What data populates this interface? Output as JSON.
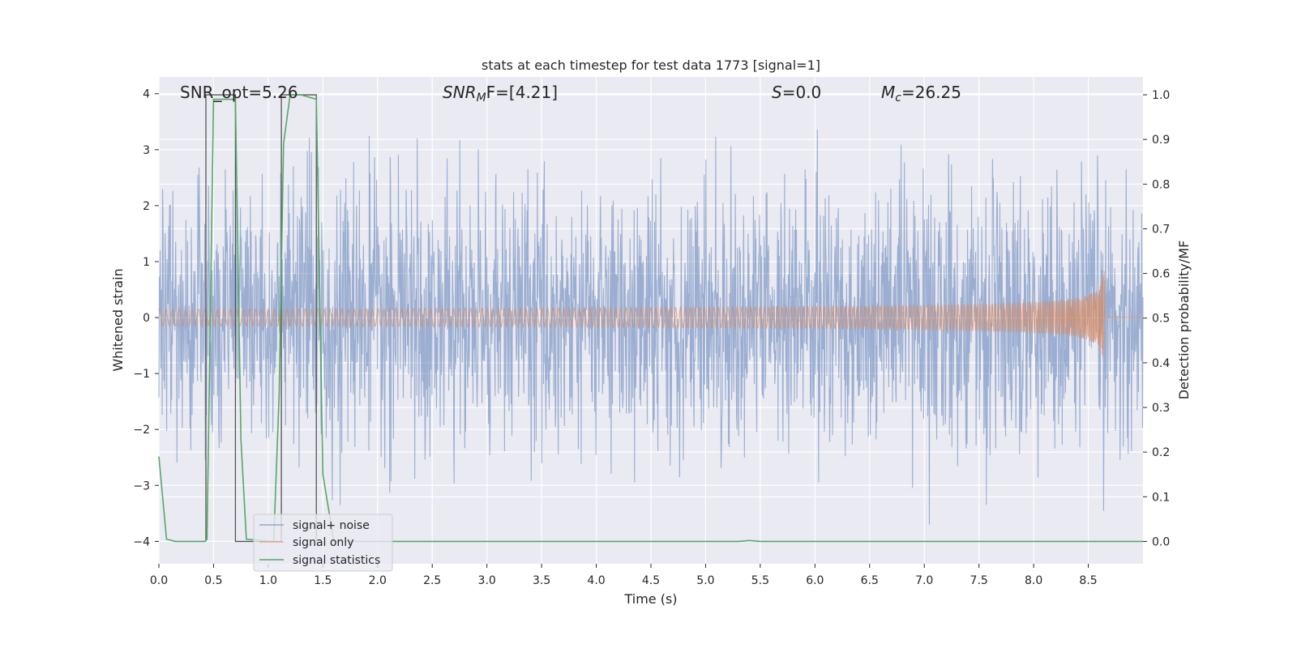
{
  "chart_data": {
    "type": "line",
    "title": "stats at each timestep for test data 1773 [signal=1]",
    "xlabel": "Time (s)",
    "ylabel": "Whitened strain",
    "y2label": "Detection probability/MF",
    "xlim": [
      0.0,
      9.0
    ],
    "ylim": [
      -4.4,
      4.3
    ],
    "y2lim": [
      -0.05,
      1.04
    ],
    "xticks": [
      "0.0",
      "0.5",
      "1.0",
      "1.5",
      "2.0",
      "2.5",
      "3.0",
      "3.5",
      "4.0",
      "4.5",
      "5.0",
      "5.5",
      "6.0",
      "6.5",
      "7.0",
      "7.5",
      "8.0",
      "8.5"
    ],
    "yticks": [
      "4",
      "3",
      "2",
      "1",
      "0",
      "−1",
      "−2",
      "−3",
      "−4"
    ],
    "y2ticks": [
      "1.0",
      "0.9",
      "0.8",
      "0.7",
      "0.6",
      "0.5",
      "0.4",
      "0.3",
      "0.2",
      "0.1",
      "0.0"
    ],
    "annotations": {
      "snr_opt": "SNR_opt=5.26",
      "snr_mf_sym": "SNR",
      "snr_mf_sub": "M",
      "snr_mf_tail": "F=[4.21]",
      "s_sym": "S",
      "s_val": "=0.0",
      "mc_sym": "M",
      "mc_sub": "c",
      "mc_val": "=26.25"
    },
    "legend": {
      "position": "lower-left",
      "entries": [
        "signal+ noise",
        "signal only",
        "signal statistics"
      ]
    },
    "colors": {
      "background": "#eaeaf2",
      "grid": "#ffffff",
      "noise": "#4c72b0",
      "signal": "#dd8452",
      "stats": "#55a868",
      "mf": "#555555"
    },
    "series": [
      {
        "name": "signal+ noise",
        "description_values": "dense random noise, approx range -3.6 to 3.9"
      },
      {
        "name": "signal only",
        "chirp_end_time": 8.65,
        "chirp_peak_amplitude": 1.2
      },
      {
        "name": "signal statistics",
        "axis": "y2",
        "x": [
          0.0,
          0.07,
          0.15,
          0.42,
          0.44,
          0.5,
          0.7,
          0.75,
          0.8,
          1.05,
          1.1,
          1.14,
          1.2,
          1.3,
          1.44,
          1.5,
          1.6,
          2.0,
          3.5,
          5.3,
          5.4,
          5.5,
          9.0
        ],
        "y": [
          0.19,
          0.005,
          0.0,
          0.0,
          0.005,
          0.99,
          0.99,
          0.23,
          0.005,
          0.0,
          0.33,
          0.89,
          1.0,
          1.0,
          0.99,
          0.15,
          0.0,
          0.0,
          0.0,
          0.0,
          0.002,
          0.0,
          0.0
        ]
      },
      {
        "name": "MF",
        "axis": "y2",
        "x": [
          0.43,
          0.43,
          0.7,
          0.7,
          1.12,
          1.12,
          1.44,
          1.44
        ],
        "y": [
          0.0,
          1.0,
          1.0,
          0.0,
          0.0,
          1.0,
          1.0,
          0.0
        ]
      }
    ]
  }
}
